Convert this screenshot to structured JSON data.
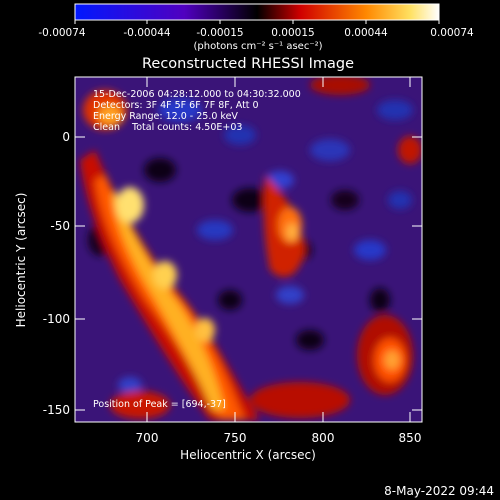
{
  "colorbar": {
    "tick_labels": [
      "-0.00074",
      "-0.00044",
      "-0.00015",
      "0.00015",
      "0.00044",
      "0.00074"
    ],
    "units_label": "(photons cm⁻² s⁻¹ asec⁻²)",
    "colors": [
      "#0018ff",
      "#4a00c8",
      "#000000",
      "#ff0000",
      "#ff8800",
      "#ffffff"
    ]
  },
  "title": "Reconstructed RHESSI Image",
  "annotations": {
    "time_range": "15-Dec-2006 04:28:12.000 to 04:30:32.000",
    "detectors": "Detectors: 3F 4F 5F 6F 7F 8F, Att 0",
    "energy_range": "Energy Range: 12.0 - 25.0 keV",
    "clean_counts": "Clean    Total counts: 4.50E+03",
    "peak_position": "Position of Peak = [694,-37]"
  },
  "axes": {
    "xlabel": "Heliocentric X (arcsec)",
    "ylabel": "Heliocentric Y (arcsec)",
    "x_ticks": [
      "700",
      "750",
      "800",
      "850"
    ],
    "y_ticks": [
      "0",
      "-50",
      "-100",
      "-150"
    ]
  },
  "footer_timestamp": "8-May-2022 09:44"
}
